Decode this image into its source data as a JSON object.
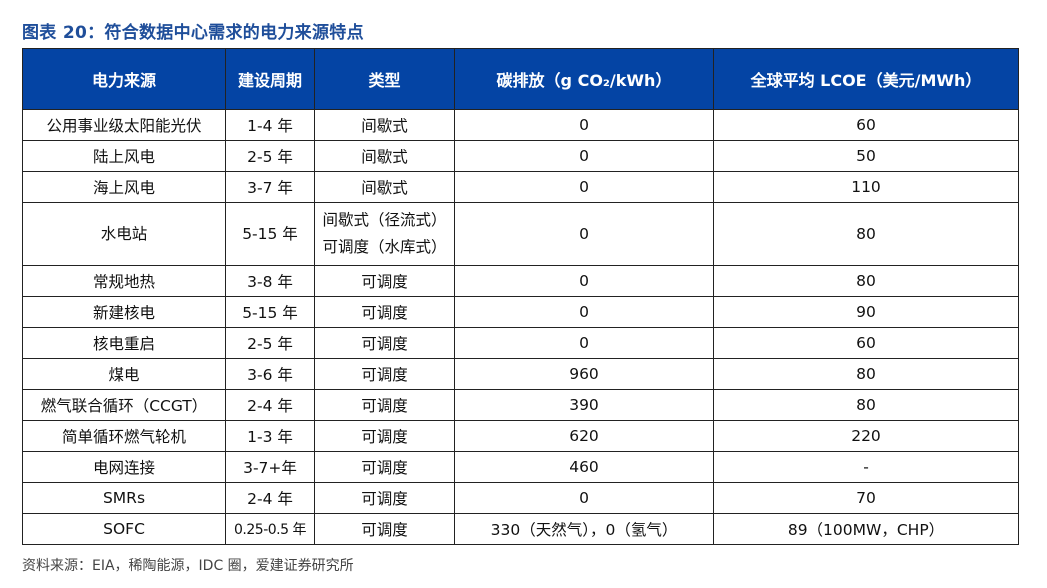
{
  "title": "图表 20：符合数据中心需求的电力来源特点",
  "table": {
    "headers": [
      "电力来源",
      "建设周期",
      "类型",
      "碳排放（g CO₂/kWh）",
      "全球平均 LCOE（美元/MWh）"
    ],
    "rows": [
      [
        "公用事业级太阳能光伏",
        "1-4 年",
        "间歇式",
        "0",
        "60"
      ],
      [
        "陆上风电",
        "2-5 年",
        "间歇式",
        "0",
        "50"
      ],
      [
        "海上风电",
        "3-7 年",
        "间歇式",
        "0",
        "110"
      ],
      [
        "水电站",
        "5-15 年",
        "间歇式（径流式）\n可调度（水库式）",
        "0",
        "80"
      ],
      [
        "常规地热",
        "3-8 年",
        "可调度",
        "0",
        "80"
      ],
      [
        "新建核电",
        "5-15 年",
        "可调度",
        "0",
        "90"
      ],
      [
        "核电重启",
        "2-5 年",
        "可调度",
        "0",
        "60"
      ],
      [
        "煤电",
        "3-6 年",
        "可调度",
        "960",
        "80"
      ],
      [
        "燃气联合循环（CCGT）",
        "2-4 年",
        "可调度",
        "390",
        "80"
      ],
      [
        "简单循环燃气轮机",
        "1-3 年",
        "可调度",
        "620",
        "220"
      ],
      [
        "电网连接",
        "3-7+年",
        "可调度",
        "460",
        "-"
      ],
      [
        "SMRs",
        "2-4 年",
        "可调度",
        "0",
        "70"
      ],
      [
        "SOFC",
        "0.25-0.5 年",
        "可调度",
        "330（天然气），0（氢气）",
        "89（100MW，CHP）"
      ]
    ]
  },
  "source": "资料来源：EIA，稀陶能源，IDC 圈，爱建证券研究所",
  "colors": {
    "header_bg": "#0444a4",
    "title": "#1f4e9a"
  }
}
